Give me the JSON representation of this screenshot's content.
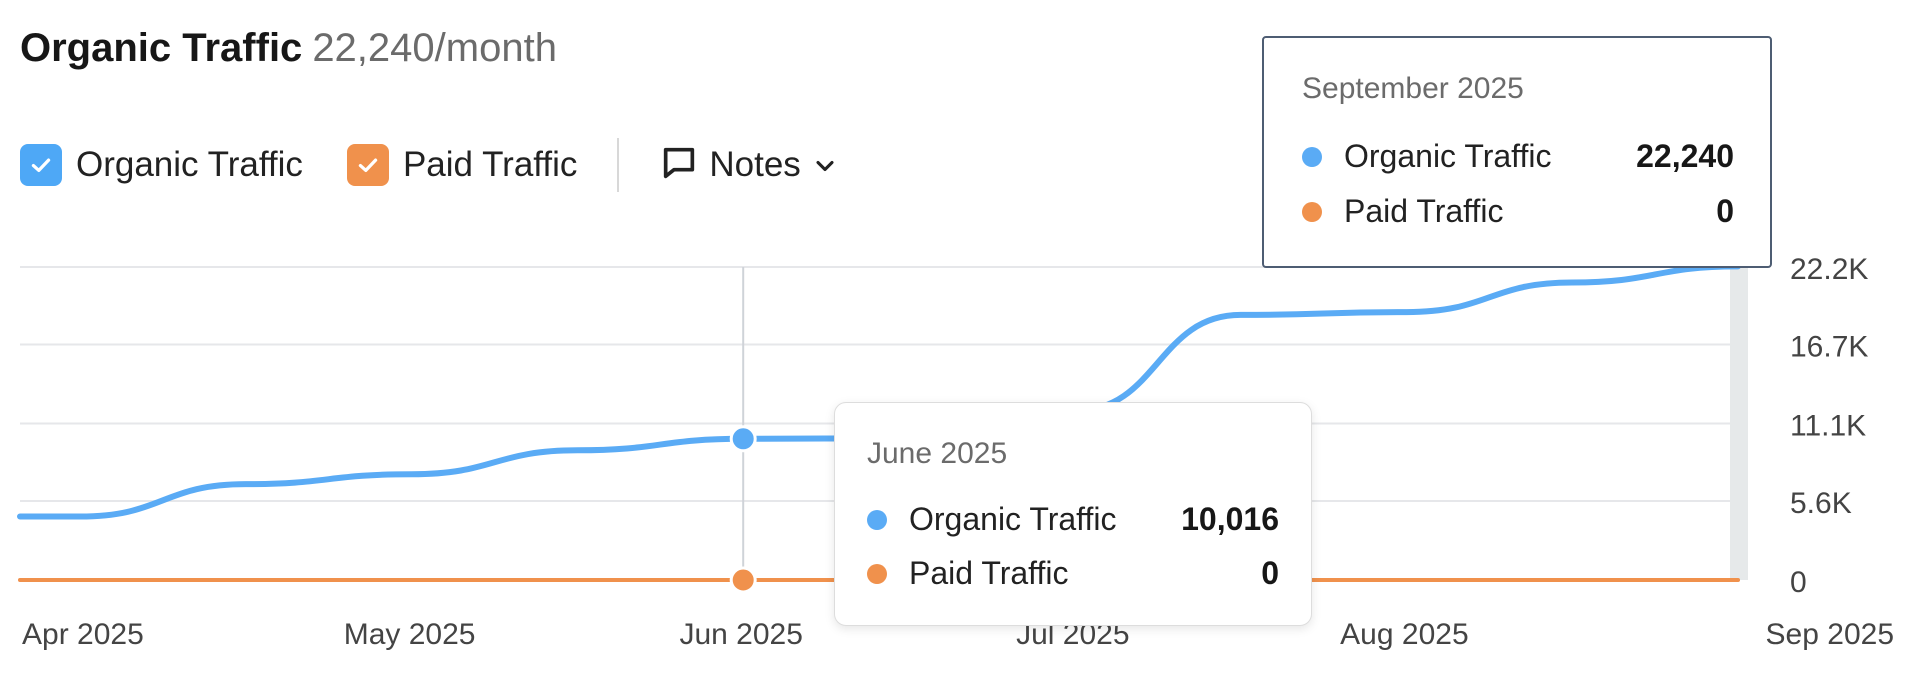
{
  "header": {
    "title": "Organic Traffic",
    "subtitle": "22,240/month"
  },
  "legend": {
    "items": [
      {
        "label": "Organic Traffic",
        "checked": true,
        "color": "#4ea8f6"
      },
      {
        "label": "Paid Traffic",
        "checked": true,
        "color": "#f0914c"
      }
    ],
    "notes_label": "Notes"
  },
  "chart_data": {
    "type": "line",
    "x": [
      "Apr 2025",
      "May 2025",
      "Jun 2025",
      "Jul 2025",
      "Aug 2025",
      "Sep 2025"
    ],
    "x_tick_labels": [
      "Apr 2025",
      "May 2025",
      "Jun 2025",
      "Jul 2025",
      "Aug 2025",
      "Sep 2025"
    ],
    "y_tick_labels": [
      "22.2K",
      "16.7K",
      "11.1K",
      "5.6K",
      "0"
    ],
    "y_ticks": [
      22200,
      16700,
      11100,
      5600,
      0
    ],
    "ylim": [
      0,
      22200
    ],
    "grid": true,
    "series": [
      {
        "name": "Organic Traffic",
        "color": "#5aabf5",
        "points": [
          [
            0,
            4500
          ],
          [
            0.5,
            6800
          ],
          [
            1,
            7500
          ],
          [
            1.5,
            9200
          ],
          [
            2,
            10016
          ],
          [
            2.5,
            10050
          ],
          [
            3,
            12000
          ],
          [
            3.5,
            18800
          ],
          [
            4,
            19000
          ],
          [
            4.5,
            21100
          ],
          [
            5,
            22240
          ]
        ]
      },
      {
        "name": "Paid Traffic",
        "color": "#f0914c",
        "points": [
          [
            0,
            0
          ],
          [
            5,
            0
          ]
        ]
      }
    ],
    "hover_marker": {
      "x_index": 2,
      "organic": 10016,
      "paid": 0
    }
  },
  "tooltips": [
    {
      "date": "September 2025",
      "rows": [
        {
          "name": "Organic Traffic",
          "value": "22,240",
          "color": "#5aabf5"
        },
        {
          "name": "Paid Traffic",
          "value": "0",
          "color": "#f0914c"
        }
      ]
    },
    {
      "date": "June 2025",
      "rows": [
        {
          "name": "Organic Traffic",
          "value": "10,016",
          "color": "#5aabf5"
        },
        {
          "name": "Paid Traffic",
          "value": "0",
          "color": "#f0914c"
        }
      ]
    }
  ]
}
